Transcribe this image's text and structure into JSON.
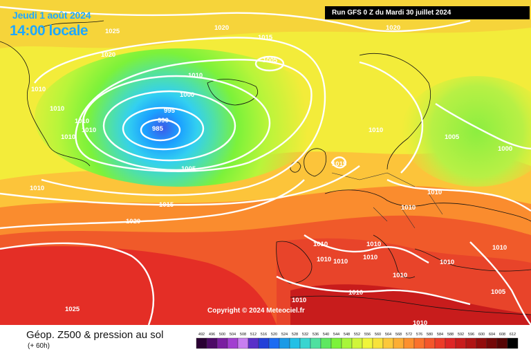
{
  "header": {
    "date": "Jeudi 1 août 2024",
    "time": "14:00 locale",
    "run": "Run GFS 0 Z du Mardi 30 juillet 2024"
  },
  "copyright": "Copyright © 2024 Meteociel.fr",
  "legend": {
    "title": "Géop. Z500 & pression au sol",
    "subtitle": "(+ 60h)",
    "scale_values": [
      "492",
      "496",
      "500",
      "504",
      "508",
      "512",
      "516",
      "520",
      "524",
      "528",
      "532",
      "536",
      "540",
      "544",
      "548",
      "552",
      "556",
      "560",
      "564",
      "568",
      "572",
      "576",
      "580",
      "584",
      "588",
      "592",
      "596",
      "600",
      "604",
      "608",
      "612"
    ],
    "scale_colors": [
      "#2a0033",
      "#4d0a66",
      "#7a1fa0",
      "#a23fd0",
      "#c87ef0",
      "#5a2fc8",
      "#2340d8",
      "#1c6cf2",
      "#1b9ae6",
      "#22c0e6",
      "#39d5d0",
      "#4fe0a0",
      "#5ee860",
      "#7cf23a",
      "#a8f53a",
      "#d0f53a",
      "#f0f53a",
      "#f8e23a",
      "#fcc83a",
      "#fcae34",
      "#fc902e",
      "#fa722c",
      "#f4562a",
      "#ec3c28",
      "#de2626",
      "#c81c1c",
      "#b01414",
      "#920c0c",
      "#740808",
      "#560404",
      "#000000"
    ]
  },
  "pressure_labels": [
    "1025",
    "1020",
    "1020",
    "1020",
    "1015",
    "1005",
    "1010",
    "1000",
    "995",
    "990",
    "985",
    "1010",
    "1010",
    "1010",
    "1010",
    "1010",
    "1005",
    "1010",
    "1015",
    "1010",
    "1005",
    "1000",
    "1010",
    "1010",
    "1015",
    "1020",
    "1010",
    "1010",
    "1010",
    "1010",
    "1010",
    "1010",
    "1010",
    "1010",
    "1010",
    "1010",
    "1005",
    "1010",
    "1025"
  ]
}
